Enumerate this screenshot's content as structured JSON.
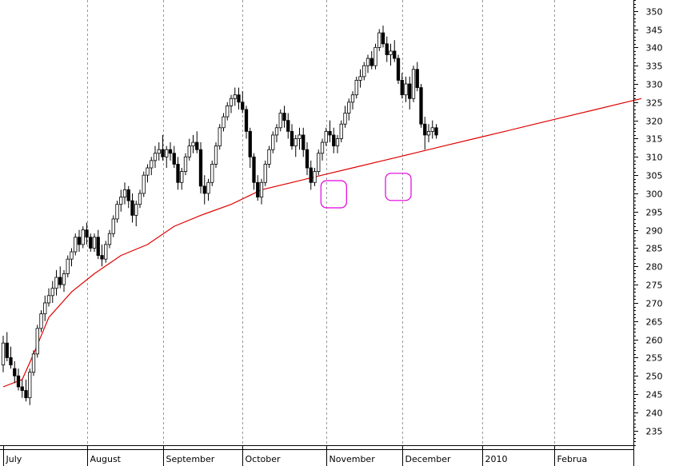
{
  "chart_data": {
    "type": "candlestick",
    "title": "",
    "xlabel": "",
    "ylabel": "",
    "ylim": [
      231,
      353
    ],
    "y_ticks": [
      235,
      240,
      245,
      250,
      255,
      260,
      265,
      270,
      275,
      280,
      285,
      290,
      295,
      300,
      305,
      310,
      315,
      320,
      325,
      330,
      335,
      340,
      345,
      350
    ],
    "y_axis_position": "right",
    "grid": "vertical-dashed-at-month-starts",
    "month_labels": [
      {
        "label": "July",
        "day": 0
      },
      {
        "label": "August",
        "day": 22
      },
      {
        "label": "September",
        "day": 42
      },
      {
        "label": "October",
        "day": 63
      },
      {
        "label": "November",
        "day": 85
      },
      {
        "label": "December",
        "day": 105
      },
      {
        "label": "2010",
        "day": 126
      },
      {
        "label": "Februa",
        "day": 145
      }
    ],
    "colors": {
      "up": "#ffffff",
      "down": "#000000",
      "wick": "#000000",
      "moving_average": "#e00000",
      "highlight": "#e000e0",
      "grid": "#999999"
    },
    "ohlc": [
      [
        253,
        261,
        251,
        259
      ],
      [
        259,
        262,
        254,
        255
      ],
      [
        255,
        258,
        252,
        253
      ],
      [
        252,
        254,
        248,
        250
      ],
      [
        250,
        252,
        246,
        247
      ],
      [
        247,
        249,
        244,
        246
      ],
      [
        246,
        249,
        243,
        244
      ],
      [
        244,
        252,
        242,
        251
      ],
      [
        251,
        257,
        250,
        256
      ],
      [
        256,
        264,
        255,
        263
      ],
      [
        263,
        268,
        262,
        267
      ],
      [
        267,
        272,
        265,
        270
      ],
      [
        270,
        274,
        269,
        272
      ],
      [
        272,
        276,
        270,
        274
      ],
      [
        274,
        279,
        272,
        277
      ],
      [
        277,
        280,
        274,
        275
      ],
      [
        275,
        279,
        273,
        278
      ],
      [
        278,
        283,
        277,
        282
      ],
      [
        282,
        285,
        280,
        284
      ],
      [
        284,
        289,
        283,
        288
      ],
      [
        288,
        290,
        284,
        286
      ],
      [
        286,
        291,
        285,
        290
      ],
      [
        290,
        292,
        286,
        288
      ],
      [
        288,
        289,
        284,
        285
      ],
      [
        285,
        289,
        284,
        288
      ],
      [
        288,
        290,
        282,
        283
      ],
      [
        283,
        286,
        280,
        282
      ],
      [
        282,
        287,
        281,
        286
      ],
      [
        286,
        290,
        285,
        289
      ],
      [
        289,
        294,
        288,
        293
      ],
      [
        293,
        298,
        292,
        297
      ],
      [
        297,
        301,
        295,
        299
      ],
      [
        299,
        303,
        297,
        301
      ],
      [
        301,
        302,
        296,
        298
      ],
      [
        298,
        300,
        292,
        294
      ],
      [
        294,
        298,
        291,
        297
      ],
      [
        297,
        301,
        296,
        300
      ],
      [
        300,
        306,
        299,
        305
      ],
      [
        305,
        308,
        303,
        307
      ],
      [
        307,
        310,
        305,
        309
      ],
      [
        309,
        313,
        307,
        311
      ],
      [
        311,
        314,
        309,
        312
      ],
      [
        312,
        316,
        309,
        310
      ],
      [
        310,
        313,
        307,
        312
      ],
      [
        312,
        314,
        309,
        311
      ],
      [
        311,
        313,
        307,
        308
      ],
      [
        308,
        310,
        301,
        303
      ],
      [
        303,
        307,
        301,
        306
      ],
      [
        306,
        311,
        305,
        310
      ],
      [
        310,
        315,
        309,
        313
      ],
      [
        313,
        316,
        311,
        314
      ],
      [
        314,
        317,
        311,
        312
      ],
      [
        312,
        314,
        300,
        302
      ],
      [
        302,
        305,
        297,
        300
      ],
      [
        300,
        304,
        298,
        303
      ],
      [
        303,
        309,
        302,
        308
      ],
      [
        308,
        314,
        307,
        313
      ],
      [
        313,
        319,
        312,
        318
      ],
      [
        318,
        322,
        317,
        321
      ],
      [
        321,
        325,
        320,
        324
      ],
      [
        324,
        327,
        322,
        326
      ],
      [
        326,
        329,
        324,
        327
      ],
      [
        327,
        329,
        323,
        325
      ],
      [
        325,
        328,
        322,
        323
      ],
      [
        323,
        324,
        315,
        317
      ],
      [
        317,
        318,
        307,
        310
      ],
      [
        310,
        311,
        301,
        303
      ],
      [
        303,
        305,
        298,
        299
      ],
      [
        299,
        304,
        297,
        303
      ],
      [
        303,
        309,
        302,
        308
      ],
      [
        308,
        313,
        307,
        312
      ],
      [
        312,
        317,
        311,
        316
      ],
      [
        316,
        319,
        314,
        318
      ],
      [
        318,
        323,
        317,
        322
      ],
      [
        322,
        324,
        318,
        320
      ],
      [
        320,
        322,
        315,
        317
      ],
      [
        317,
        319,
        312,
        313
      ],
      [
        313,
        316,
        310,
        315
      ],
      [
        315,
        318,
        312,
        316
      ],
      [
        316,
        318,
        310,
        312
      ],
      [
        312,
        314,
        305,
        307
      ],
      [
        307,
        309,
        301,
        303
      ],
      [
        303,
        307,
        302,
        306
      ],
      [
        306,
        312,
        305,
        311
      ],
      [
        311,
        315,
        309,
        314
      ],
      [
        314,
        318,
        313,
        317
      ],
      [
        317,
        320,
        314,
        316
      ],
      [
        316,
        318,
        311,
        313
      ],
      [
        313,
        316,
        311,
        315
      ],
      [
        315,
        320,
        314,
        319
      ],
      [
        319,
        324,
        318,
        322
      ],
      [
        322,
        326,
        320,
        325
      ],
      [
        325,
        328,
        323,
        327
      ],
      [
        327,
        332,
        326,
        331
      ],
      [
        331,
        334,
        329,
        332
      ],
      [
        332,
        336,
        331,
        335
      ],
      [
        335,
        338,
        333,
        337
      ],
      [
        337,
        339,
        334,
        335
      ],
      [
        335,
        341,
        334,
        340
      ],
      [
        340,
        345,
        339,
        344
      ],
      [
        344,
        346,
        340,
        341
      ],
      [
        341,
        343,
        336,
        338
      ],
      [
        338,
        341,
        335,
        339
      ],
      [
        339,
        342,
        336,
        337
      ],
      [
        337,
        338,
        330,
        331
      ],
      [
        331,
        333,
        326,
        327
      ],
      [
        327,
        332,
        325,
        330
      ],
      [
        330,
        332,
        323,
        326
      ],
      [
        326,
        335,
        325,
        334
      ],
      [
        334,
        336,
        328,
        329
      ],
      [
        329,
        330,
        318,
        319
      ],
      [
        319,
        321,
        312,
        316
      ],
      [
        316,
        319,
        314,
        317
      ],
      [
        317,
        320,
        315,
        318
      ],
      [
        318,
        319,
        315,
        316
      ]
    ],
    "moving_average": [
      [
        0,
        247
      ],
      [
        5,
        249
      ],
      [
        8,
        256
      ],
      [
        12,
        266
      ],
      [
        18,
        273
      ],
      [
        24,
        278
      ],
      [
        31,
        283
      ],
      [
        38,
        286
      ],
      [
        45,
        291
      ],
      [
        52,
        294
      ],
      [
        60,
        297
      ],
      [
        68,
        301
      ],
      [
        76,
        303
      ],
      [
        84,
        305
      ],
      [
        92,
        307
      ],
      [
        100,
        309
      ],
      [
        108,
        311
      ],
      [
        116,
        313
      ],
      [
        124,
        315
      ],
      [
        132,
        317
      ],
      [
        140,
        319
      ],
      [
        148,
        321
      ],
      [
        156,
        323
      ],
      [
        164,
        325
      ],
      [
        168,
        326
      ]
    ],
    "highlights": [
      {
        "day": 87,
        "price": 300
      },
      {
        "day": 104,
        "price": 302
      }
    ]
  }
}
